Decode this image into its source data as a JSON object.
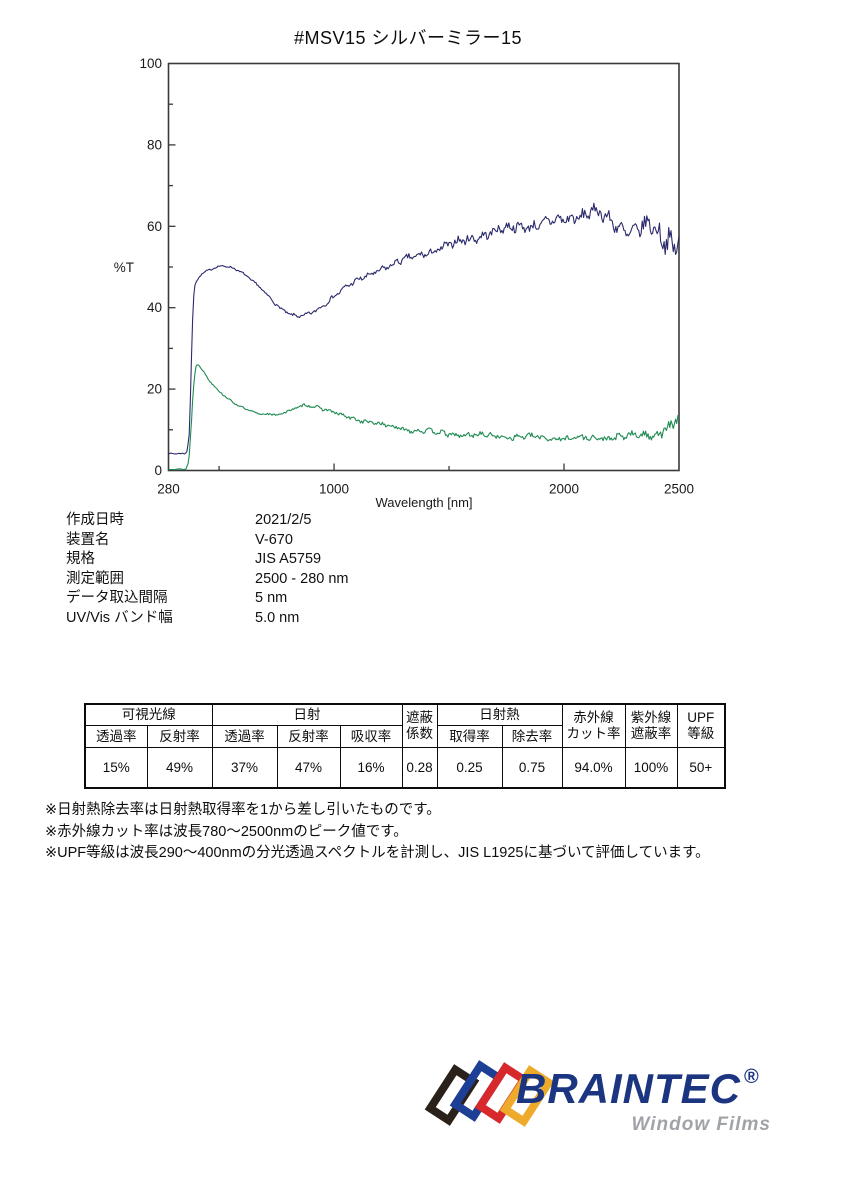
{
  "page": {
    "title": "#MSV15  シルバーミラー15",
    "background": "#ffffff"
  },
  "chart_data": {
    "type": "line",
    "title": "",
    "xlabel": "Wavelength [nm]",
    "ylabel": "%T",
    "xlim": [
      280,
      2500
    ],
    "ylim": [
      0,
      100
    ],
    "grid": false,
    "legend": "none",
    "frame": true,
    "axis_color": "#3a3a3a",
    "x_tick_label_values": [
      280,
      1000,
      2000,
      2500
    ],
    "x_tick_labels": [
      "280",
      "1000",
      "2000",
      "2500"
    ],
    "x_major_ticks": [
      1000,
      2000
    ],
    "x_minor_ticks": [
      500,
      1500
    ],
    "y_tick_label_values": [
      0,
      20,
      40,
      60,
      80,
      100
    ],
    "y_tick_labels": [
      "0",
      "20",
      "40",
      "60",
      "80",
      "100"
    ],
    "y_major_ticks": [
      20,
      40,
      60,
      80
    ],
    "y_minor_ticks": [
      10,
      30,
      50,
      70,
      90
    ],
    "x_step_nm": 5,
    "series": [
      {
        "name": "navy-curve",
        "color": "#2b2b6d",
        "anchors": [
          [
            280,
            4.2
          ],
          [
            352,
            4.2
          ],
          [
            362,
            5
          ],
          [
            372,
            10
          ],
          [
            380,
            28
          ],
          [
            388,
            42
          ],
          [
            396,
            46
          ],
          [
            420,
            48
          ],
          [
            450,
            49
          ],
          [
            480,
            49.8
          ],
          [
            510,
            50.3
          ],
          [
            540,
            50.2
          ],
          [
            570,
            49.6
          ],
          [
            600,
            48.6
          ],
          [
            630,
            47.2
          ],
          [
            660,
            45.8
          ],
          [
            690,
            44.2
          ],
          [
            720,
            42.5
          ],
          [
            750,
            40.8
          ],
          [
            780,
            39.4
          ],
          [
            810,
            38.4
          ],
          [
            840,
            37.8
          ],
          [
            870,
            37.9
          ],
          [
            900,
            38.6
          ],
          [
            930,
            39.6
          ],
          [
            960,
            41
          ],
          [
            1000,
            43
          ],
          [
            1050,
            45
          ],
          [
            1100,
            46.5
          ],
          [
            1150,
            48
          ],
          [
            1200,
            49.5
          ],
          [
            1250,
            50.5
          ],
          [
            1300,
            51.5
          ],
          [
            1350,
            52.5
          ],
          [
            1400,
            53.5
          ],
          [
            1450,
            54.3
          ],
          [
            1500,
            55.2
          ],
          [
            1550,
            56.2
          ],
          [
            1600,
            57.2
          ],
          [
            1650,
            58
          ],
          [
            1700,
            58.7
          ],
          [
            1750,
            59.3
          ],
          [
            1800,
            60
          ],
          [
            1850,
            60.3
          ],
          [
            1900,
            60.5
          ],
          [
            1950,
            61
          ],
          [
            2000,
            61.5
          ],
          [
            2050,
            62.5
          ],
          [
            2100,
            63.3
          ],
          [
            2130,
            63.8
          ],
          [
            2160,
            62.8
          ],
          [
            2200,
            61
          ],
          [
            2240,
            59.8
          ],
          [
            2280,
            58.8
          ],
          [
            2320,
            59.5
          ],
          [
            2360,
            60.2
          ],
          [
            2400,
            58.5
          ],
          [
            2430,
            55.8
          ],
          [
            2455,
            57.5
          ],
          [
            2475,
            54.5
          ],
          [
            2500,
            58.5
          ]
        ],
        "noise": [
          [
            280,
            0.1
          ],
          [
            400,
            0.2
          ],
          [
            600,
            0.25
          ],
          [
            800,
            0.35
          ],
          [
            1000,
            0.5
          ],
          [
            1200,
            0.7
          ],
          [
            1400,
            0.9
          ],
          [
            1600,
            1.1
          ],
          [
            1800,
            1.2
          ],
          [
            2000,
            1.4
          ],
          [
            2200,
            1.7
          ],
          [
            2350,
            2.0
          ],
          [
            2500,
            3.0
          ]
        ]
      },
      {
        "name": "green-curve",
        "color": "#1e8b52",
        "anchors": [
          [
            280,
            0.3
          ],
          [
            355,
            0.3
          ],
          [
            368,
            2
          ],
          [
            378,
            10
          ],
          [
            388,
            20
          ],
          [
            398,
            25.5
          ],
          [
            408,
            26.3
          ],
          [
            430,
            24.5
          ],
          [
            460,
            22
          ],
          [
            500,
            19.5
          ],
          [
            540,
            17.5
          ],
          [
            580,
            16
          ],
          [
            620,
            15
          ],
          [
            660,
            14.2
          ],
          [
            700,
            13.9
          ],
          [
            740,
            13.7
          ],
          [
            760,
            13.6
          ],
          [
            800,
            14.5
          ],
          [
            840,
            15.5
          ],
          [
            870,
            16.2
          ],
          [
            900,
            16
          ],
          [
            940,
            15.3
          ],
          [
            980,
            14.5
          ],
          [
            1020,
            13.8
          ],
          [
            1060,
            13.2
          ],
          [
            1100,
            12.6
          ],
          [
            1150,
            11.9
          ],
          [
            1200,
            11.3
          ],
          [
            1250,
            10.8
          ],
          [
            1300,
            10.3
          ],
          [
            1350,
            9.9
          ],
          [
            1400,
            9.6
          ],
          [
            1450,
            9.3
          ],
          [
            1500,
            9
          ],
          [
            1550,
            8.8
          ],
          [
            1600,
            8.7
          ],
          [
            1650,
            8.6
          ],
          [
            1700,
            8.5
          ],
          [
            1750,
            8.4
          ],
          [
            1800,
            8.3
          ],
          [
            1850,
            8.2
          ],
          [
            1900,
            8.1
          ],
          [
            1950,
            8
          ],
          [
            2000,
            8
          ],
          [
            2050,
            7.9
          ],
          [
            2100,
            7.9
          ],
          [
            2150,
            8
          ],
          [
            2200,
            8.1
          ],
          [
            2250,
            8.2
          ],
          [
            2300,
            8.4
          ],
          [
            2350,
            8.7
          ],
          [
            2400,
            9.3
          ],
          [
            2440,
            10.2
          ],
          [
            2470,
            11
          ],
          [
            2500,
            12.3
          ]
        ],
        "noise": [
          [
            280,
            0.05
          ],
          [
            400,
            0.15
          ],
          [
            600,
            0.2
          ],
          [
            800,
            0.3
          ],
          [
            1000,
            0.4
          ],
          [
            1200,
            0.5
          ],
          [
            1400,
            0.55
          ],
          [
            1600,
            0.6
          ],
          [
            1800,
            0.65
          ],
          [
            2000,
            0.7
          ],
          [
            2200,
            0.8
          ],
          [
            2350,
            1.0
          ],
          [
            2500,
            1.5
          ]
        ]
      }
    ]
  },
  "measurement_info": {
    "rows": [
      {
        "label": "作成日時",
        "value": "2021/2/5"
      },
      {
        "label": "装置名",
        "value": "V-670"
      },
      {
        "label": "規格",
        "value": "JIS A5759"
      },
      {
        "label": "測定範囲",
        "value": "2500 - 280 nm"
      },
      {
        "label": "データ取込間隔",
        "value": "5 nm"
      },
      {
        "label": "UV/Vis バンド幅",
        "value": "5.0 nm"
      }
    ]
  },
  "result_table": {
    "group_headers": {
      "visible_light": "可視光線",
      "solar": "日射",
      "solar_heat": "日射熱"
    },
    "stacked_headers": {
      "shading_coefficient": "遮蔽\n係数",
      "ir_cut": "赤外線\nカット率",
      "uv_block": "紫外線\n遮蔽率",
      "upf": "UPF\n等級"
    },
    "sub_headers": [
      "透過率",
      "反射率",
      "透過率",
      "反射率",
      "吸収率",
      "取得率",
      "除去率"
    ],
    "values": [
      "15%",
      "49%",
      "37%",
      "47%",
      "16%",
      "0.28",
      "0.25",
      "0.75",
      "94.0%",
      "100%",
      "50+"
    ]
  },
  "notes": [
    "※日射熱除去率は日射熱取得率を1から差し引いたものです。",
    "※赤外線カット率は波長780～2500nmのピーク値です。",
    "※UPF等級は波長290～400nmの分光透過スペクトルを計測し、JIS L1925に基づいて評価しています。"
  ],
  "logo": {
    "brand": "BRAINTEC",
    "registered": "®",
    "subtitle": "Window Films",
    "brand_color": "#1b3581",
    "subtitle_color": "#a0a3a7",
    "marks": [
      {
        "name": "black-frame",
        "color": "#2a211b"
      },
      {
        "name": "blue-frame",
        "color": "#1e3f96"
      },
      {
        "name": "red-frame",
        "color": "#d7282b"
      },
      {
        "name": "gold-frame",
        "color": "#edaa2b"
      }
    ]
  }
}
